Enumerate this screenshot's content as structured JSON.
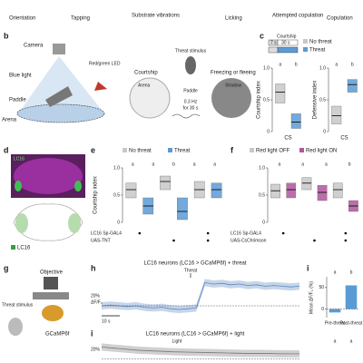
{
  "behaviors": [
    "Orientation",
    "Tapping",
    "Substrate vibrations",
    "Licking",
    "Attempted copulation",
    "Copulation"
  ],
  "panel_b": {
    "label": "b",
    "camera": "Camera",
    "blue_light": "Blue light",
    "led": "Red/green LED",
    "paddle": "Paddle",
    "arena": "Arena",
    "courtship": "Courtship",
    "arena2": "Arena",
    "threat": "Threat stimulus",
    "paddle2": "Paddle",
    "freq": "0.3 Hz",
    "dur": "for 30 s",
    "freezing": "Freezing or fleeing",
    "shadow": "Shadow"
  },
  "panel_c": {
    "label": "c",
    "protocol": "Courtship",
    "t1": "7 s",
    "t2": "30 s",
    "legend": [
      "No threat",
      "Threat"
    ],
    "colors": [
      "#c8c8c8",
      "#5b9bd5"
    ],
    "ylim": [
      0,
      1
    ],
    "yticks": [
      0,
      0.5,
      {
        "value": 1,
        "label": "1.0"
      }
    ],
    "xlabel": "CS",
    "plots": [
      {
        "ylabel": "Courtship index",
        "letters": [
          "a",
          "b"
        ],
        "boxes": [
          {
            "q1": 0.45,
            "median": 0.62,
            "q3": 0.75
          },
          {
            "q1": 0.05,
            "median": 0.15,
            "q3": 0.28
          }
        ]
      },
      {
        "ylabel": "Defensive index",
        "letters": [
          "a",
          "b"
        ],
        "boxes": [
          {
            "q1": 0.12,
            "median": 0.25,
            "q3": 0.4
          },
          {
            "q1": 0.62,
            "median": 0.74,
            "q3": 0.82
          }
        ]
      }
    ]
  },
  "panel_d": {
    "label": "d",
    "image_label": "LC16",
    "legend": "LC16"
  },
  "panel_e": {
    "label": "e",
    "legend": [
      "No threat",
      "Threat"
    ],
    "colors": [
      "#c8c8c8",
      "#5b9bd5"
    ],
    "ylabel": "Courtship index",
    "ylim": [
      0,
      1
    ],
    "yticks": [
      0,
      0.5,
      {
        "value": 1,
        "label": "1.0"
      }
    ],
    "letters": [
      "a",
      "a",
      "b",
      "a",
      "a"
    ],
    "rows": [
      "LC16 Sp-GAL4",
      "UAS-TNT"
    ],
    "boxes": [
      {
        "q1": 0.45,
        "median": 0.6,
        "q3": 0.72
      },
      {
        "q1": 0.15,
        "median": 0.3,
        "q3": 0.45
      },
      {
        "q1": 0.6,
        "median": 0.75,
        "q3": 0.85
      },
      {
        "q1": 0.05,
        "median": 0.2,
        "q3": 0.45
      },
      {
        "q1": 0.45,
        "median": 0.6,
        "q3": 0.75
      },
      {
        "q1": 0.45,
        "median": 0.6,
        "q3": 0.72
      }
    ]
  },
  "panel_f": {
    "label": "f",
    "legend": [
      "Red light OFF",
      "Red light ON"
    ],
    "colors": [
      "#c8c8c8",
      "#b0559e"
    ],
    "ylim": [
      0,
      1
    ],
    "yticks": [
      0,
      0.5,
      {
        "value": 1,
        "label": "1.0"
      }
    ],
    "letters": [
      "a",
      "a",
      "a",
      "b"
    ],
    "rows": [
      "LC16 Sp-GAL4",
      "UAS-CsChrimson"
    ],
    "boxes": [
      {
        "q1": 0.45,
        "median": 0.58,
        "q3": 0.7
      },
      {
        "q1": 0.45,
        "median": 0.6,
        "q3": 0.72
      },
      {
        "q1": 0.6,
        "median": 0.72,
        "q3": 0.82
      },
      {
        "q1": 0.4,
        "median": 0.55,
        "q3": 0.68
      },
      {
        "q1": 0.45,
        "median": 0.6,
        "q3": 0.72
      },
      {
        "q1": 0.2,
        "median": 0.3,
        "q3": 0.4
      }
    ]
  },
  "panel_g": {
    "label": "g",
    "objective": "Objective",
    "threat": "Threat stimulus",
    "sensor": "GCaMP6f"
  },
  "panel_h": {
    "label": "h",
    "title": "LC16 neurons (LC16 > GCaMP6f) + threat",
    "event": "Threat",
    "scale_y": "20%",
    "ylabel": "ΔF/F₀",
    "scale_x": "10 s",
    "trace": {
      "ylim": [
        -10,
        40
      ],
      "values": [
        0,
        1,
        0,
        -1,
        0,
        -2,
        -3,
        -2,
        -4,
        -5,
        -4,
        -3,
        32,
        30,
        31,
        29,
        30,
        28,
        29,
        27,
        28,
        27,
        26,
        27
      ]
    },
    "bar": {
      "label": "i",
      "ylabel": "Mean ΔF/F₀ (%)",
      "categories": [
        "Pre-threat",
        "Post-threat"
      ],
      "values": [
        -8,
        55
      ],
      "colors": [
        "#5b9bd5",
        "#5b9bd5"
      ],
      "ylim": [
        -20,
        75
      ],
      "yticks": [
        0,
        50
      ],
      "letters": [
        "a",
        "b"
      ]
    }
  },
  "panel_i": {
    "label": "i",
    "title": "LC16 neurons (LC16 > GCaMP6f) + light",
    "event": "Light",
    "scale_y": "20%",
    "letters": [
      "a",
      "a"
    ],
    "trace": {
      "ylim": [
        -10,
        40
      ],
      "values": [
        30,
        26,
        22,
        20,
        18,
        17,
        16,
        15,
        14,
        14,
        13,
        13
      ]
    }
  }
}
